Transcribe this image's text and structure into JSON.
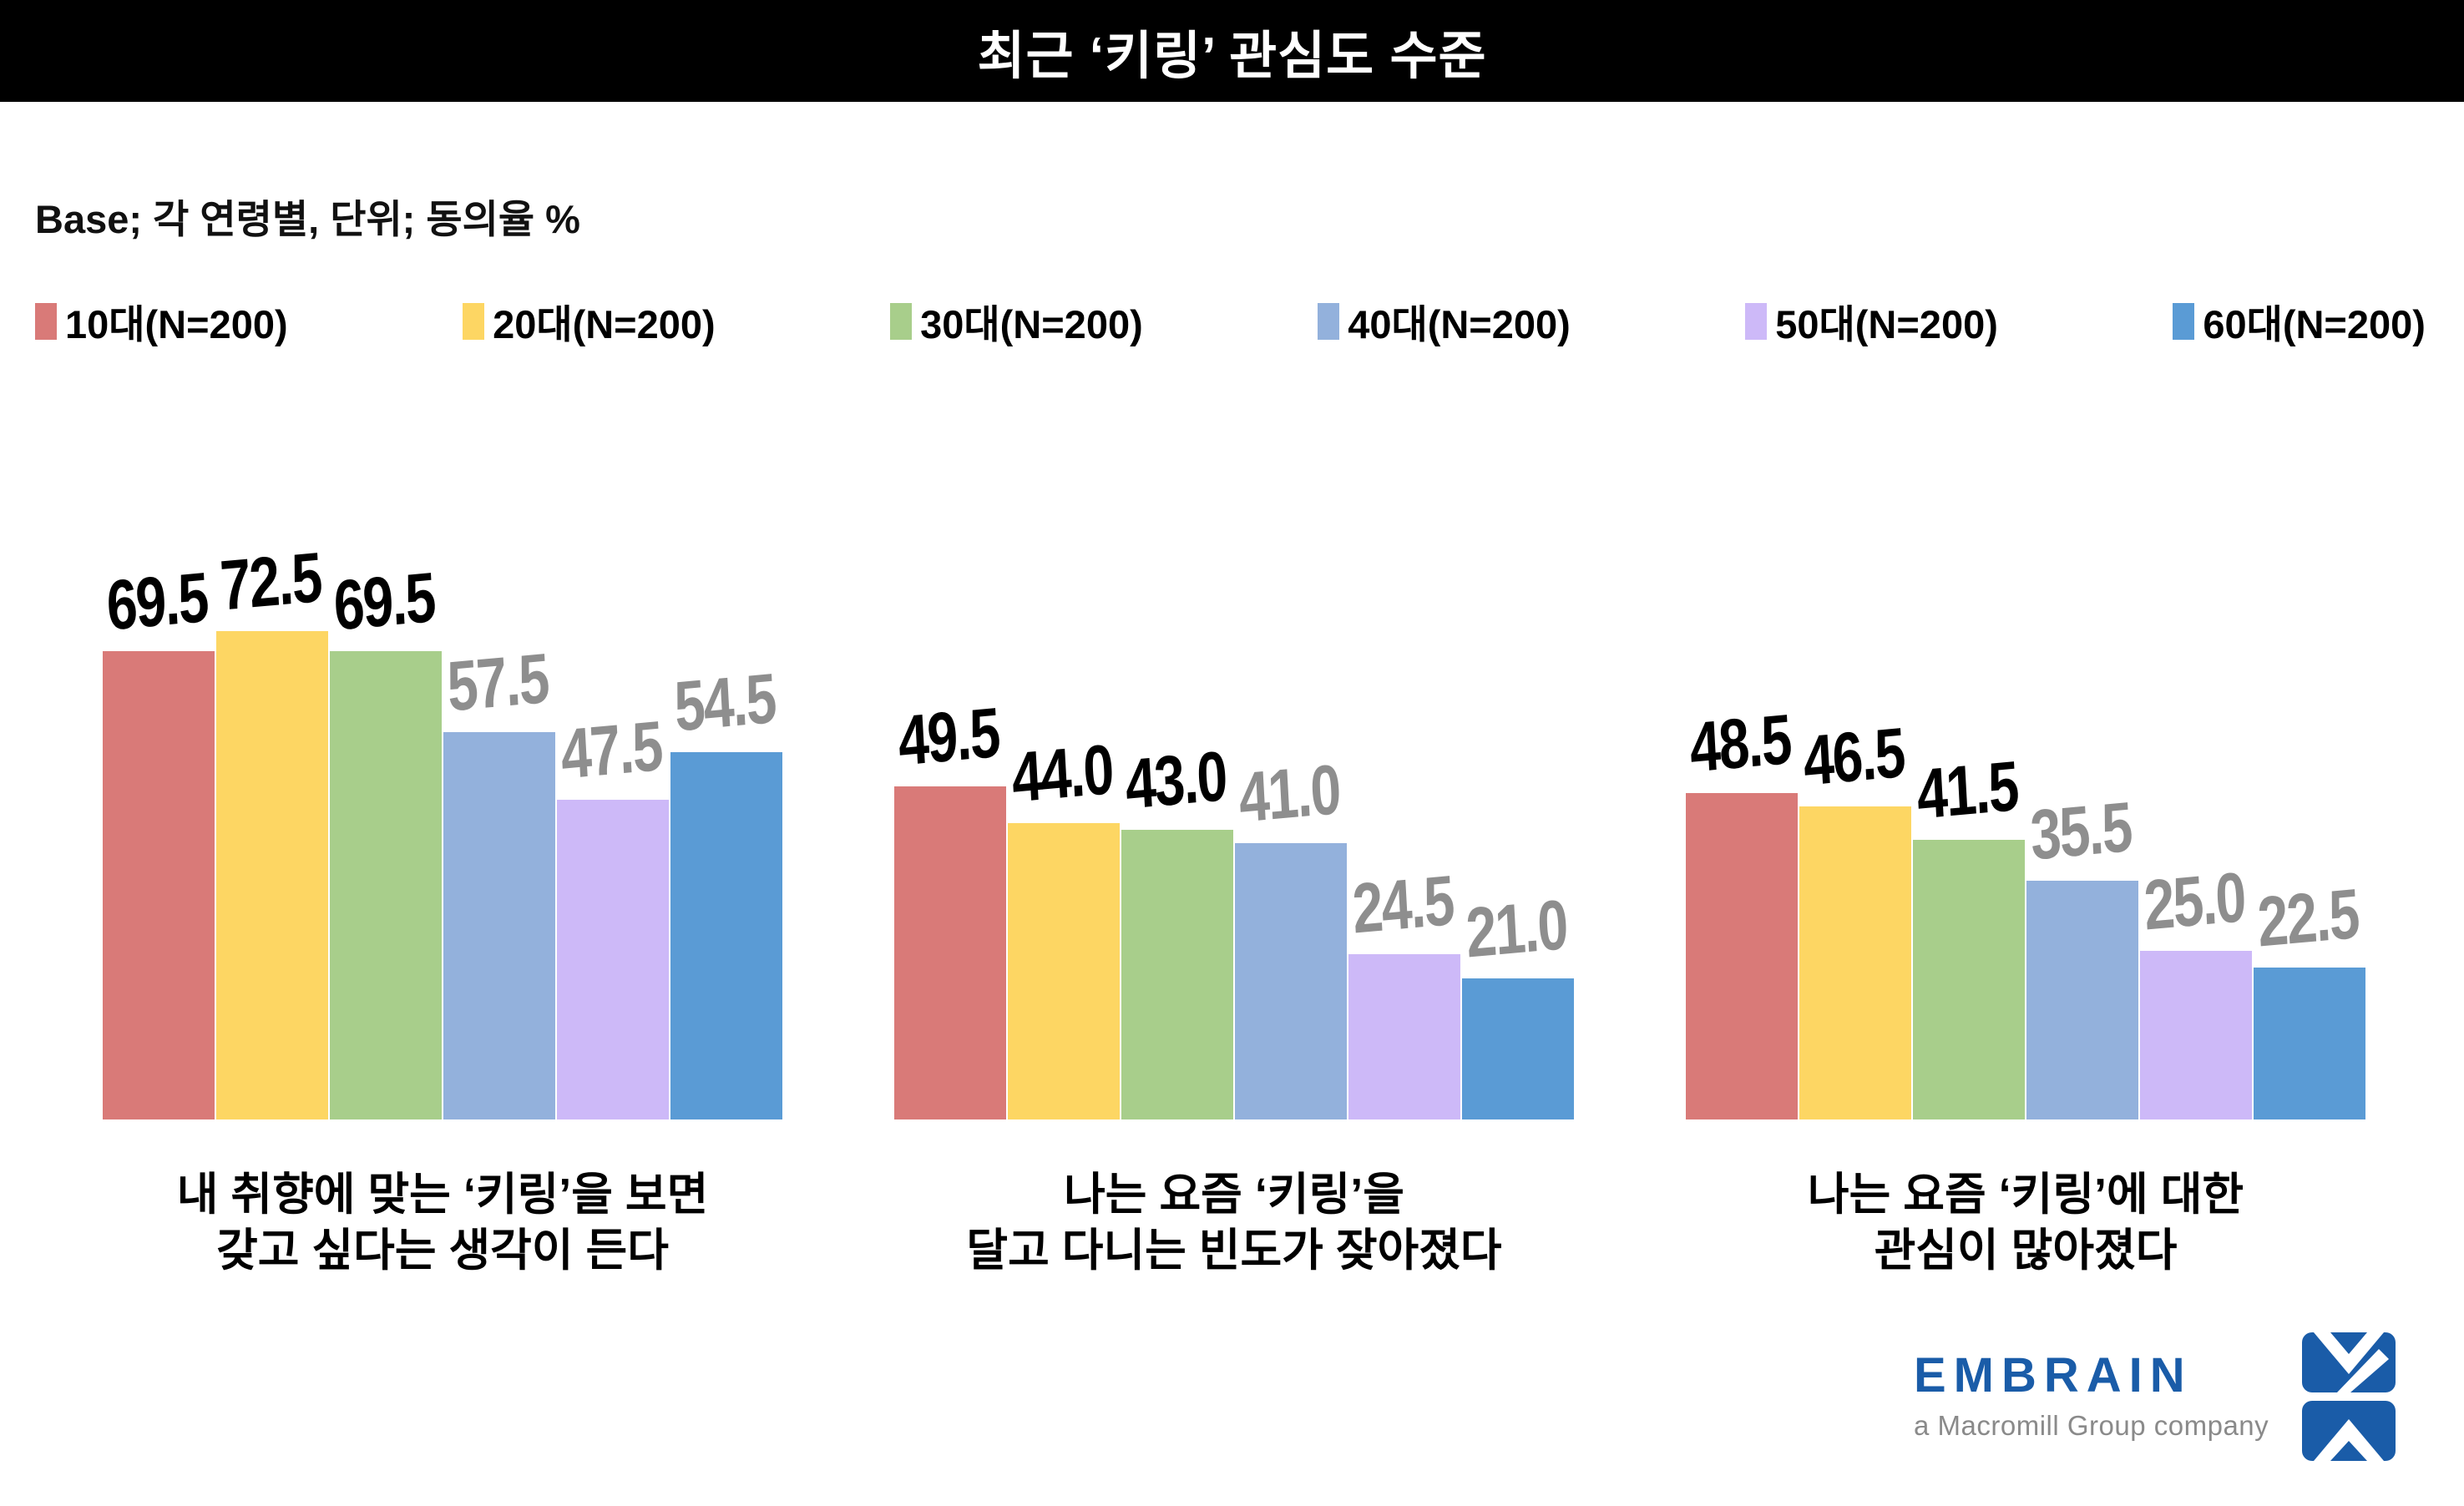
{
  "title": "최근 ‘키링’ 관심도 수준",
  "base_note": "Base; 각 연령별, 단위; 동의율 %",
  "legend": {
    "items": [
      {
        "label": "10대(N=200)",
        "color": "#D97A78"
      },
      {
        "label": "20대(N=200)",
        "color": "#FDD663"
      },
      {
        "label": "30대(N=200)",
        "color": "#A8CE8B"
      },
      {
        "label": "40대(N=200)",
        "color": "#93B1DC"
      },
      {
        "label": "50대(N=200)",
        "color": "#CDB9F8"
      },
      {
        "label": "60대(N=200)",
        "color": "#5A9BD5"
      }
    ]
  },
  "value_label_colors": [
    "#000000",
    "#000000",
    "#000000",
    "#8E8E8E",
    "#8E8E8E",
    "#8E8E8E"
  ],
  "chart_data": [
    {
      "type": "bar",
      "title": "내 취향에 맞는 ‘키링’을 보면 갖고 싶다는 생각이 든다",
      "caption_lines": [
        "내 취향에 맞는 ‘키링’을 보면",
        "갖고 싶다는 생각이 든다"
      ],
      "categories": [
        "10대",
        "20대",
        "30대",
        "40대",
        "50대",
        "60대"
      ],
      "values": [
        69.5,
        72.5,
        69.5,
        57.5,
        47.5,
        54.5
      ],
      "unit": "%",
      "ylim": [
        0,
        80
      ],
      "grid": false,
      "legend_position": "top"
    },
    {
      "type": "bar",
      "title": "나는 요즘 ‘키링’을 달고 다니는 빈도가 잦아졌다",
      "caption_lines": [
        "나는 요즘 ‘키링’을",
        "달고 다니는 빈도가 잦아졌다"
      ],
      "categories": [
        "10대",
        "20대",
        "30대",
        "40대",
        "50대",
        "60대"
      ],
      "values": [
        49.5,
        44.0,
        43.0,
        41.0,
        24.5,
        21.0
      ],
      "unit": "%",
      "ylim": [
        0,
        80
      ],
      "grid": false,
      "legend_position": "top"
    },
    {
      "type": "bar",
      "title": "나는 요즘 ‘키링’에 대한 관심이 많아졌다",
      "caption_lines": [
        "나는 요즘 ‘키링’에 대한",
        "관심이 많아졌다"
      ],
      "categories": [
        "10대",
        "20대",
        "30대",
        "40대",
        "50대",
        "60대"
      ],
      "values": [
        48.5,
        46.5,
        41.5,
        35.5,
        25.0,
        22.5
      ],
      "unit": "%",
      "ylim": [
        0,
        80
      ],
      "grid": false,
      "legend_position": "top"
    }
  ],
  "logo": {
    "wordmark": "EMBRAIN",
    "subtext": "a Macromill Group company",
    "brand_color": "#1A5CA8"
  }
}
